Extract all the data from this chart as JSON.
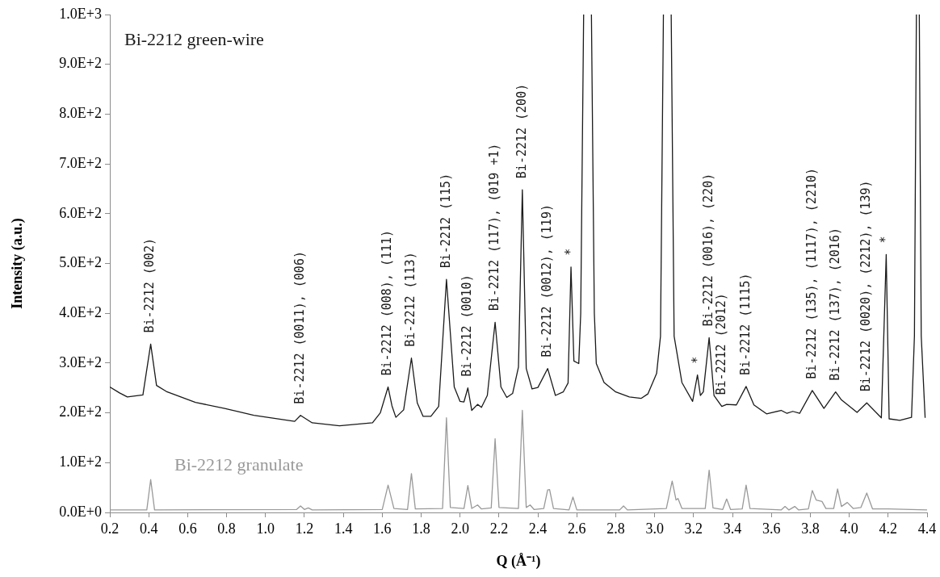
{
  "chart_data": {
    "type": "line",
    "xlabel": "Q (Å⁻¹)",
    "ylabel": "Intensity (a.u.)",
    "xlim": [
      0.2,
      4.4
    ],
    "xticks": [
      0.2,
      0.4,
      0.6,
      0.8,
      {
        "value": 1.0,
        "label": "1.0"
      },
      1.2,
      1.4,
      1.6,
      1.8,
      {
        "value": 2.0,
        "label": "2.0"
      },
      2.2,
      2.4,
      2.6,
      2.8,
      {
        "value": 3.0,
        "label": "3.0"
      },
      3.2,
      3.4,
      3.6,
      3.8,
      {
        "value": 4.0,
        "label": "4.0"
      },
      4.2,
      4.4
    ],
    "ylim": [
      0,
      1000
    ],
    "yticks": [
      {
        "value": 0,
        "label": "0.0E+0"
      },
      {
        "value": 100,
        "label": "1.0E+2"
      },
      {
        "value": 200,
        "label": "2.0E+2"
      },
      {
        "value": 300,
        "label": "3.0E+2"
      },
      {
        "value": 400,
        "label": "4.0E+2"
      },
      {
        "value": 500,
        "label": "5.0E+2"
      },
      {
        "value": 600,
        "label": "6.0E+2"
      },
      {
        "value": 700,
        "label": "7.0E+2"
      },
      {
        "value": 800,
        "label": "8.0E+2"
      },
      {
        "value": 900,
        "label": "9.0E+2"
      },
      {
        "value": 1000,
        "label": "1.0E+3"
      }
    ],
    "legend": false,
    "series": [
      {
        "name": "Bi-2212 green-wire",
        "color": "#1a1a1a",
        "x": [
          0.2,
          0.25,
          0.29,
          0.37,
          0.41,
          0.44,
          0.49,
          0.64,
          0.79,
          0.94,
          1.08,
          1.15,
          1.18,
          1.24,
          1.38,
          1.55,
          1.59,
          1.63,
          1.65,
          1.67,
          1.71,
          1.75,
          1.78,
          1.81,
          1.85,
          1.89,
          1.93,
          1.97,
          2.0,
          2.02,
          2.04,
          2.06,
          2.09,
          2.11,
          2.14,
          2.18,
          2.21,
          2.24,
          2.27,
          2.3,
          2.32,
          2.34,
          2.37,
          2.4,
          2.45,
          2.49,
          2.53,
          2.555,
          2.57,
          2.585,
          2.61,
          2.62,
          2.635,
          2.65,
          2.675,
          2.69,
          2.7,
          2.74,
          2.8,
          2.87,
          2.93,
          2.965,
          3.01,
          3.03,
          3.045,
          3.06,
          3.085,
          3.1,
          3.14,
          3.195,
          3.22,
          3.235,
          3.25,
          3.28,
          3.305,
          3.345,
          3.37,
          3.42,
          3.47,
          3.51,
          3.575,
          3.65,
          3.68,
          3.71,
          3.745,
          3.81,
          3.87,
          3.93,
          3.96,
          4.04,
          4.09,
          4.165,
          4.19,
          4.205,
          4.26,
          4.32,
          4.335,
          4.345,
          4.35,
          4.36,
          4.37,
          4.39
        ],
        "values": [
          252,
          240,
          232,
          236,
          338,
          255,
          243,
          221,
          209,
          195,
          187,
          183,
          195,
          180,
          174,
          180,
          200,
          252,
          214,
          191,
          206,
          310,
          220,
          193,
          193,
          213,
          468,
          252,
          223,
          222,
          250,
          205,
          217,
          211,
          235,
          382,
          252,
          231,
          239,
          292,
          648,
          289,
          248,
          251,
          289,
          235,
          242,
          260,
          493,
          304,
          299,
          400,
          1000,
          null,
          1000,
          400,
          299,
          261,
          242,
          232,
          229,
          238,
          279,
          354,
          1000,
          null,
          1000,
          354,
          261,
          223,
          276,
          235,
          242,
          351,
          235,
          213,
          217,
          216,
          253,
          216,
          198,
          205,
          199,
          203,
          199,
          245,
          209,
          242,
          226,
          201,
          220,
          190,
          518,
          188,
          185,
          191,
          354,
          1000,
          null,
          1000,
          354,
          190
        ]
      },
      {
        "name": "Bi-2212 granulate",
        "color": "#999999",
        "x": [
          0.2,
          0.39,
          0.41,
          0.43,
          1.16,
          1.18,
          1.2,
          1.22,
          1.24,
          1.6,
          1.63,
          1.66,
          1.73,
          1.75,
          1.77,
          1.91,
          1.93,
          1.95,
          2.02,
          2.04,
          2.06,
          2.09,
          2.11,
          2.16,
          2.18,
          2.2,
          2.3,
          2.32,
          2.34,
          2.36,
          2.38,
          2.43,
          2.45,
          2.46,
          2.48,
          2.56,
          2.58,
          2.6,
          2.82,
          2.84,
          2.86,
          3.06,
          3.09,
          3.11,
          3.12,
          3.14,
          3.26,
          3.28,
          3.3,
          3.35,
          3.37,
          3.39,
          3.45,
          3.47,
          3.49,
          3.65,
          3.67,
          3.69,
          3.72,
          3.74,
          3.79,
          3.81,
          3.83,
          3.86,
          3.88,
          3.92,
          3.94,
          3.96,
          3.99,
          4.02,
          4.06,
          4.09,
          4.12,
          4.2,
          4.4
        ],
        "values": [
          5,
          5,
          66,
          5,
          6,
          13,
          6,
          9,
          5,
          6,
          55,
          8,
          6,
          78,
          7,
          8,
          190,
          10,
          8,
          54,
          8,
          15,
          7,
          9,
          148,
          10,
          8,
          205,
          10,
          15,
          6,
          8,
          45,
          46,
          8,
          5,
          31,
          5,
          5,
          13,
          5,
          8,
          63,
          25,
          28,
          8,
          8,
          85,
          9,
          6,
          27,
          6,
          7,
          55,
          8,
          5,
          12,
          5,
          12,
          5,
          7,
          44,
          25,
          22,
          8,
          8,
          47,
          12,
          20,
          8,
          10,
          39,
          7,
          7,
          5
        ]
      }
    ],
    "annotations": [
      {
        "text": "Bi-2212 (002)",
        "x": 0.41,
        "y": 338
      },
      {
        "text": "Bi-2212 (0011), (006)",
        "x": 1.18,
        "y": 195
      },
      {
        "text": "Bi-2212 (008), (111)",
        "x": 1.63,
        "y": 252
      },
      {
        "text": "Bi-2212 (113)",
        "x": 1.75,
        "y": 310
      },
      {
        "text": "Bi-2212 (115)",
        "x": 1.93,
        "y": 468
      },
      {
        "text": "Bi-2212 (0010)",
        "x": 2.04,
        "y": 250
      },
      {
        "text": "Bi-2212 (117), (019 +1)",
        "x": 2.18,
        "y": 382
      },
      {
        "text": "Bi-2212 (200)",
        "x": 2.32,
        "y": 648
      },
      {
        "text": "Bi-2212 (0012), (119)",
        "x": 2.45,
        "y": 289
      },
      {
        "text": "*",
        "x": 2.57,
        "y": 493
      },
      {
        "text": "*",
        "x": 3.22,
        "y": 276
      },
      {
        "text": "Bi-2212 (0016), (220)",
        "x": 3.28,
        "y": 351
      },
      {
        "text": "Bi-2212 (2012)",
        "x": 3.345,
        "y": 213
      },
      {
        "text": "Bi-2212 (1115)",
        "x": 3.47,
        "y": 253
      },
      {
        "text": "Bi-2212 (135), (1117), (2210)",
        "x": 3.81,
        "y": 245
      },
      {
        "text": "Bi-2212 (137), (2016)",
        "x": 3.93,
        "y": 242
      },
      {
        "text": "Bi-2212 (0020), (2212), (139)",
        "x": 4.09,
        "y": 220
      },
      {
        "text": "*",
        "x": 4.19,
        "y": 518
      }
    ]
  }
}
